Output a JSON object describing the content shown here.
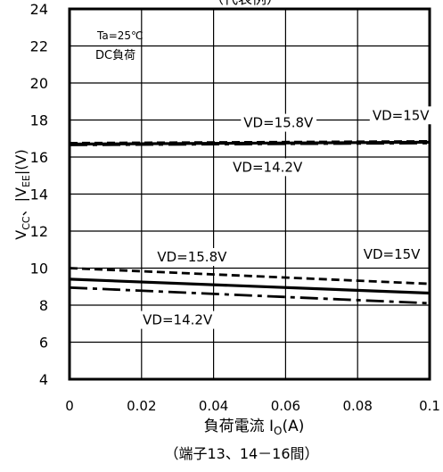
{
  "chart_data": {
    "type": "line",
    "title": "（代表例）",
    "xlabel": "負荷電流 I",
    "xlabel_sub": "O",
    "xlabel_unit": "(A)",
    "xlabel_note": "（端子13、14－16間）",
    "ylabel": "V",
    "ylabel_parts": {
      "cc_sub": "CC",
      "sep": "、|V",
      "ee_sub": "EE",
      "unit": "|(V)"
    },
    "xlim": [
      0,
      0.1
    ],
    "ylim": [
      4,
      24
    ],
    "x_ticks": [
      0,
      0.02,
      0.04,
      0.06,
      0.08,
      0.1
    ],
    "x_tick_labels": [
      "0",
      "0.02",
      "0.04",
      "0.06",
      "0.08",
      "0.1"
    ],
    "y_ticks": [
      4,
      6,
      8,
      10,
      12,
      14,
      16,
      18,
      20,
      22,
      24
    ],
    "y_tick_labels": [
      "4",
      "6",
      "8",
      "10",
      "12",
      "14",
      "16",
      "18",
      "20",
      "22",
      "24"
    ],
    "grid": true,
    "condition_lines": [
      "Ta=25℃",
      "DC負荷"
    ],
    "series": [
      {
        "name": "VD=15.8V",
        "group": "Vcc",
        "style": "dash",
        "x": [
          0,
          0.1
        ],
        "y": [
          16.75,
          16.85
        ]
      },
      {
        "name": "VD=15V",
        "group": "Vcc",
        "style": "solid",
        "x": [
          0,
          0.1
        ],
        "y": [
          16.7,
          16.8
        ]
      },
      {
        "name": "VD=14.2V",
        "group": "Vcc",
        "style": "dashdot",
        "x": [
          0,
          0.1
        ],
        "y": [
          16.65,
          16.75
        ]
      },
      {
        "name": "VD=15.8V",
        "group": "Vee",
        "style": "dash",
        "x": [
          0,
          0.1
        ],
        "y": [
          10.0,
          9.15
        ]
      },
      {
        "name": "VD=15V",
        "group": "Vee",
        "style": "solid",
        "x": [
          0,
          0.1
        ],
        "y": [
          9.4,
          8.65
        ]
      },
      {
        "name": "VD=14.2V",
        "group": "Vee",
        "style": "dashdot",
        "x": [
          0,
          0.1
        ],
        "y": [
          8.95,
          8.1
        ]
      }
    ],
    "annotations": [
      {
        "text": "VD=15.8V",
        "x": 0.058,
        "y": 17.9
      },
      {
        "text": "VD=15V",
        "x": 0.092,
        "y": 18.3
      },
      {
        "text": "VD=14.2V",
        "x": 0.055,
        "y": 15.5
      },
      {
        "text": "VD=15.8V",
        "x": 0.034,
        "y": 10.65
      },
      {
        "text": "VD=15V",
        "x": 0.0895,
        "y": 10.8
      },
      {
        "text": "VD=14.2V",
        "x": 0.03,
        "y": 7.25
      }
    ]
  }
}
